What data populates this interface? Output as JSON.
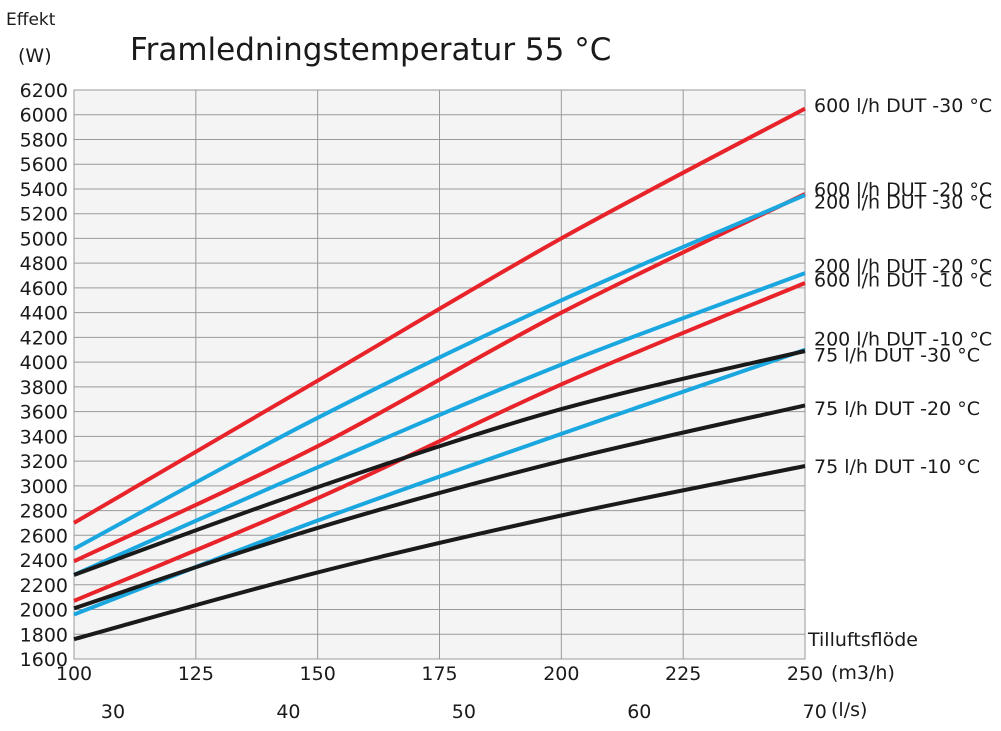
{
  "chart_data": {
    "type": "line",
    "title": "Framledningstemperatur 55 °C",
    "ylabel": "Effekt",
    "ylabel_unit": "(W)",
    "xlabel": "Tilluftsflöde",
    "x_unit": "(m3/h)",
    "x2_unit": "(l/s)",
    "xlim": [
      100,
      250
    ],
    "ylim": [
      1600,
      6200
    ],
    "x_ticks": [
      100,
      125,
      150,
      175,
      200,
      225,
      250
    ],
    "x_tick_labels": [
      "100",
      "125",
      "150",
      "175",
      "200",
      "225",
      "250"
    ],
    "x2_ticks": [
      108,
      144,
      180,
      216,
      252
    ],
    "x2_tick_labels": [
      "30",
      "40",
      "50",
      "60",
      "70"
    ],
    "y_ticks": [
      1600,
      1800,
      2000,
      2200,
      2400,
      2600,
      2800,
      3000,
      3200,
      3400,
      3600,
      3800,
      4000,
      4200,
      4400,
      4600,
      4800,
      5000,
      5200,
      5400,
      5600,
      5800,
      6000,
      6200
    ],
    "y_tick_labels": [
      "1600",
      "1800",
      "2000",
      "2200",
      "2400",
      "2600",
      "2800",
      "3000",
      "3200",
      "3400",
      "3600",
      "3800",
      "4000",
      "4200",
      "4400",
      "4600",
      "4800",
      "5000",
      "5200",
      "5400",
      "5600",
      "5800",
      "6000",
      "6200"
    ],
    "grid": true,
    "x": [
      100,
      150,
      200,
      250
    ],
    "series": [
      {
        "name": "600 l/h DUT -30 °C",
        "color": "#e8232a",
        "values": [
          2700,
          3850,
          5000,
          6050
        ]
      },
      {
        "name": "600 l/h DUT -20 °C",
        "color": "#e8232a",
        "values": [
          2390,
          3320,
          4400,
          5360
        ]
      },
      {
        "name": "600 l/h DUT -10 °C",
        "color": "#e8232a",
        "values": [
          2070,
          2900,
          3820,
          4640
        ]
      },
      {
        "name": "200 l/h DUT -30 °C",
        "color": "#1aa7e0",
        "values": [
          2490,
          3550,
          4500,
          5350
        ]
      },
      {
        "name": "200 l/h DUT -20 °C",
        "color": "#1aa7e0",
        "values": [
          2280,
          3150,
          3980,
          4720
        ]
      },
      {
        "name": "200 l/h DUT -10 °C",
        "color": "#1aa7e0",
        "values": [
          1960,
          2720,
          3420,
          4100
        ]
      },
      {
        "name": "75 l/h DUT -30 °C",
        "color": "#1a1a1a",
        "values": [
          2280,
          2990,
          3620,
          4090
        ]
      },
      {
        "name": "75 l/h DUT -20 °C",
        "color": "#1a1a1a",
        "values": [
          2010,
          2660,
          3200,
          3650
        ]
      },
      {
        "name": "75 l/h DUT -10 °C",
        "color": "#1a1a1a",
        "values": [
          1760,
          2300,
          2760,
          3160
        ]
      }
    ],
    "series_label_lines": [
      {
        "text": "600 l/h DUT -30 °C",
        "value": 6080
      },
      {
        "text": "600 l/h DUT -20 °C",
        "value": 5400
      },
      {
        "text": "200 l/h DUT -30 °C",
        "value": 5300
      },
      {
        "text": "200 l/h DUT -20 °C",
        "value": 4780
      },
      {
        "text": "600 l/h DUT -10 °C",
        "value": 4670
      },
      {
        "text": "200 l/h DUT -10 °C",
        "value": 4190
      },
      {
        "text": "75 l/h DUT -30 °C",
        "value": 4060
      },
      {
        "text": "75 l/h DUT -20 °C",
        "value": 3630
      },
      {
        "text": "75 l/h DUT -10 °C",
        "value": 3160
      }
    ]
  }
}
